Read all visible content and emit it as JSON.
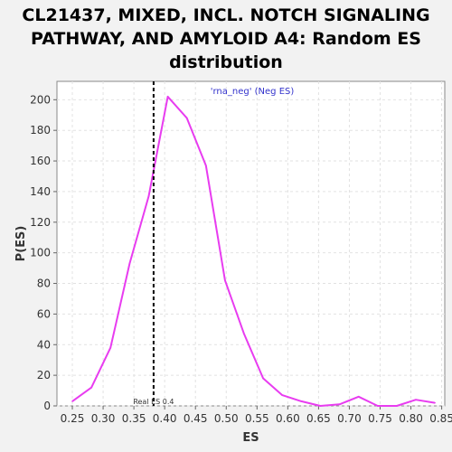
{
  "title_lines": [
    "CL21437, MIXED, INCL. NOTCH SIGNALING",
    "PATHWAY, AND AMYLOID A4: Random ES",
    "distribution"
  ],
  "chart_data": {
    "type": "line",
    "xlabel": "ES",
    "ylabel": "P(ES)",
    "xlim": [
      0.225,
      0.855
    ],
    "ylim": [
      0,
      212
    ],
    "xticks": [
      0.25,
      0.3,
      0.35,
      0.4,
      0.45,
      0.5,
      0.55,
      0.6,
      0.65,
      0.7,
      0.75,
      0.8,
      0.85
    ],
    "yticks": [
      0,
      20,
      40,
      60,
      80,
      100,
      120,
      140,
      160,
      180,
      200
    ],
    "grid": true,
    "series": [
      {
        "name": "'rna_neg' (Neg ES)",
        "color": "#e83cf0",
        "x": [
          0.25,
          0.281,
          0.312,
          0.343,
          0.374,
          0.405,
          0.436,
          0.467,
          0.498,
          0.529,
          0.56,
          0.591,
          0.622,
          0.653,
          0.684,
          0.715,
          0.746,
          0.777,
          0.808,
          0.839
        ],
        "y": [
          3,
          12,
          38,
          93,
          137,
          202,
          188,
          157,
          82,
          47,
          18,
          7,
          3,
          0,
          1,
          6,
          0,
          0,
          4,
          2
        ]
      }
    ],
    "annotation": {
      "label": "Real ES 0.4",
      "x": 0.382
    },
    "legend_position": "top-center"
  }
}
